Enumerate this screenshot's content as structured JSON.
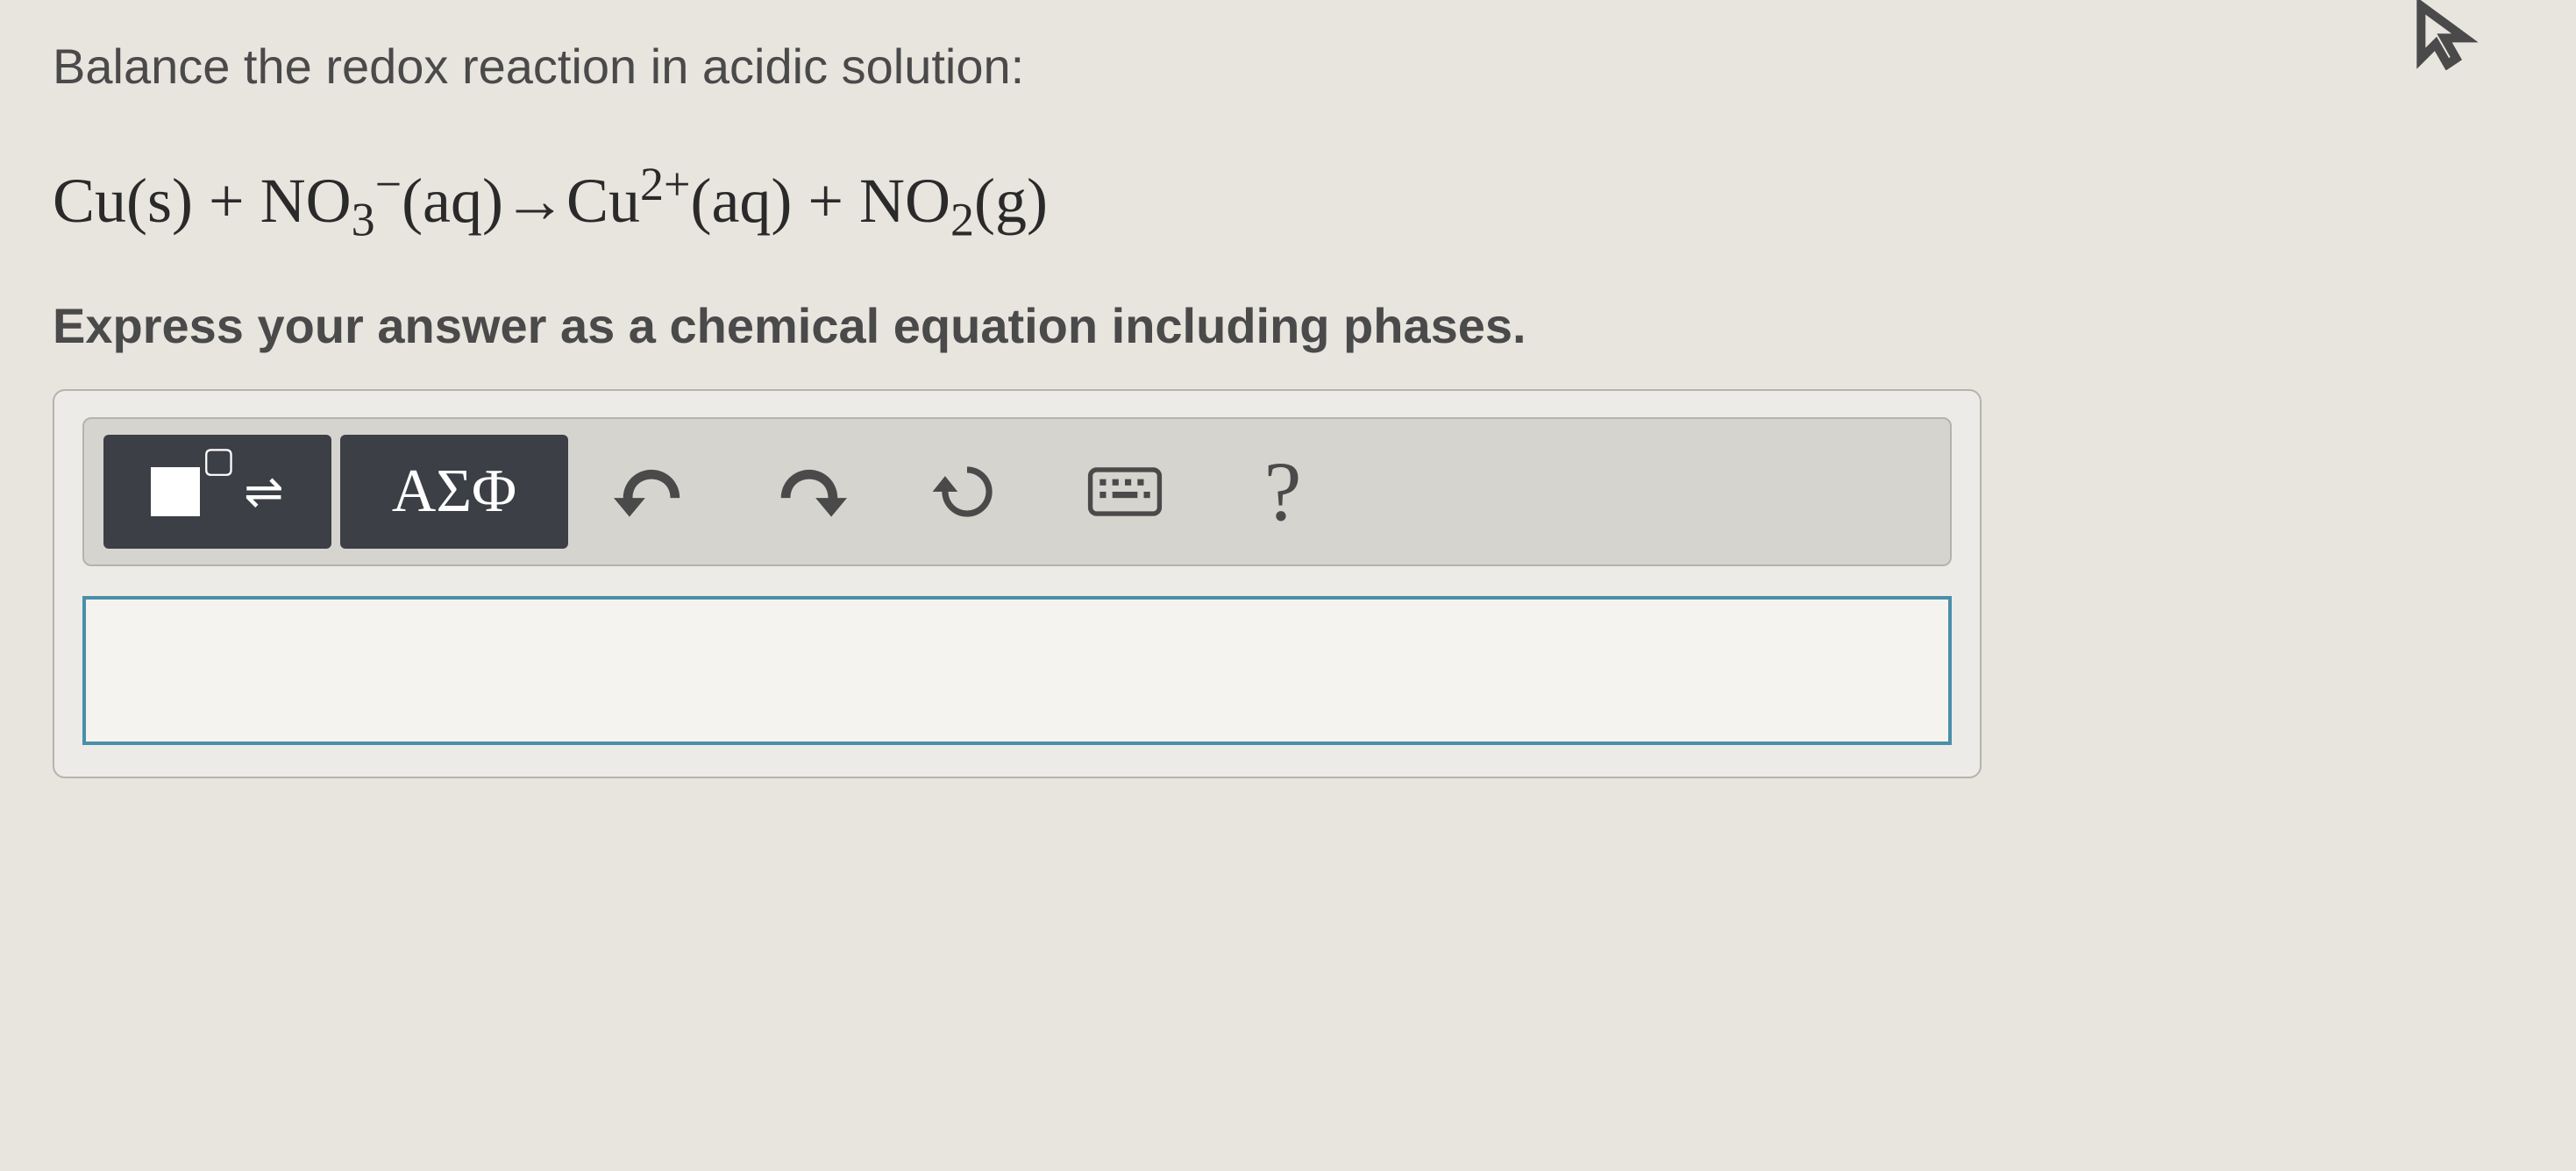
{
  "prompt": "Balance the redox reaction in acidic solution:",
  "equation_html": "Cu(s) + NO<sub>3</sub><sup>&minus;</sup>(aq)&rarr;Cu<sup>2+</sup>(aq) + NO<sub>2</sub>(g)",
  "instruction": "Express your answer as a chemical equation including phases.",
  "toolbar": {
    "template_button": {
      "superscript_char": "▢",
      "arrows_char": "⇌"
    },
    "greek_label": "ΑΣΦ",
    "undo_label": "undo",
    "redo_label": "redo",
    "reset_label": "reset",
    "keyboard_label": "keyboard",
    "help_label": "?"
  },
  "answer_value": "",
  "colors": {
    "bg": "#e8e4de",
    "text": "#4a4a4a",
    "dark_btn": "#3c3f45",
    "toolbar_bg": "#d6d4ce",
    "border": "#b5b3ae",
    "input_border": "#4a8fa8",
    "input_bg": "#f5f3ef"
  }
}
